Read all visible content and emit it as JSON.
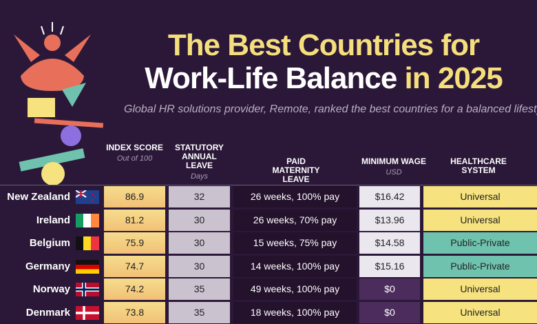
{
  "header": {
    "title_line1": "The Best Countries for",
    "title_line2": "Work-Life Balance",
    "title_year": "in 2025",
    "subtitle": "Global HR solutions provider, Remote, ranked the best countries for a balanced lifestyle"
  },
  "table": {
    "columns": [
      {
        "label": "Index Score",
        "unit": "Out of 100"
      },
      {
        "label": "Statutory Annual Leave",
        "unit": "Days"
      },
      {
        "label": "Paid Maternity Leave"
      },
      {
        "label": "Minimum Wage",
        "unit": "USD"
      },
      {
        "label": "Healthcare System"
      }
    ],
    "rows": [
      [
        "New Zealand",
        86.9,
        32,
        "26 weeks, 100% pay",
        "$16.42",
        "Universal"
      ],
      [
        "Ireland",
        81.2,
        30,
        "26 weeks, 70% pay",
        "$13.96",
        "Universal"
      ],
      [
        "Belgium",
        75.9,
        30,
        "15 weeks, 75% pay",
        "$14.58",
        "Public-Private"
      ],
      [
        "Germany",
        74.7,
        30,
        "14 weeks, 100% pay",
        "$15.16",
        "Public-Private"
      ],
      [
        "Norway",
        74.2,
        35,
        "49 weeks, 100% pay",
        "$0",
        "Universal"
      ],
      [
        "Denmark",
        73.8,
        35,
        "18 weeks, 100% pay",
        "$0",
        "Universal"
      ]
    ]
  }
}
